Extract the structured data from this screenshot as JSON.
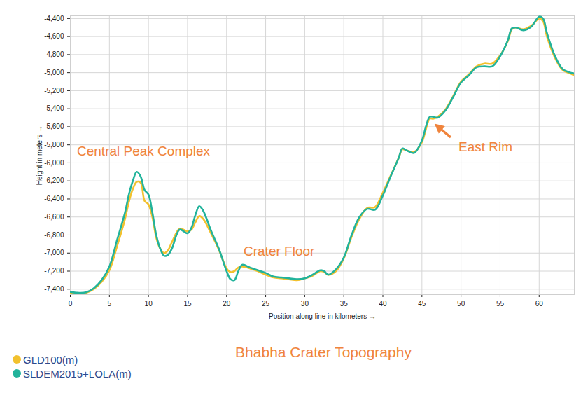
{
  "chart_data": {
    "type": "line",
    "title": "Bhabha Crater Topography",
    "x_label": "Position along line in kilometers",
    "y_label": "Height in meters",
    "grid": true,
    "legend": "bottom-left",
    "annotations": [
      "Central Peak Complex",
      "Crater Floor",
      "East Rim"
    ],
    "xlim": [
      0,
      64.5
    ],
    "xticks": [
      0,
      5,
      10,
      15,
      20,
      25,
      30,
      35,
      40,
      45,
      50,
      55,
      60
    ],
    "ylim": [
      -7460,
      -4370
    ],
    "yticks": [
      {
        "value": -4400,
        "label": "-4,400"
      },
      {
        "value": -4600,
        "label": "-4,600"
      },
      {
        "value": -4800,
        "label": "-4,800"
      },
      {
        "value": -5000,
        "label": "-5,000"
      },
      {
        "value": -5200,
        "label": "-5,200"
      },
      {
        "value": -5400,
        "label": "-5,400"
      },
      {
        "value": -5600,
        "label": "-5,600"
      },
      {
        "value": -5800,
        "label": "-5,800"
      },
      {
        "value": -6000,
        "label": "-6,000"
      },
      {
        "value": -6200,
        "label": "-6,200"
      },
      {
        "value": -6400,
        "label": "-6,400"
      },
      {
        "value": -6600,
        "label": "-6,600"
      },
      {
        "value": -6800,
        "label": "-6,800"
      },
      {
        "value": -7000,
        "label": "-7,000"
      },
      {
        "value": -7200,
        "label": "-7,200"
      },
      {
        "value": -7400,
        "label": "-7,400"
      }
    ],
    "x": [
      0,
      1,
      2,
      3,
      4,
      5,
      6,
      7,
      7.5,
      8,
      8.5,
      9,
      9.5,
      10,
      10.5,
      11,
      11.5,
      12,
      12.5,
      13,
      14,
      15,
      15.5,
      16,
      16.5,
      17,
      18,
      19,
      20,
      20.5,
      21,
      21.5,
      22,
      23,
      24,
      25,
      26,
      27,
      28,
      29,
      30,
      31,
      32,
      32.5,
      33,
      34,
      35,
      36,
      37,
      38,
      39,
      40,
      41,
      42,
      42.5,
      43,
      44,
      45,
      45.5,
      46,
      46.5,
      47,
      48,
      49,
      50,
      51,
      52,
      53,
      54,
      55,
      56,
      56.5,
      57,
      58,
      59,
      60,
      60.5,
      61,
      62,
      63,
      64,
      64.5
    ],
    "series": [
      {
        "name": "GLD100(m)",
        "color": "#f2c12e",
        "values": [
          -7440,
          -7450,
          -7440,
          -7400,
          -7320,
          -7190,
          -6920,
          -6620,
          -6430,
          -6290,
          -6210,
          -6220,
          -6420,
          -6460,
          -6600,
          -6830,
          -6950,
          -7000,
          -6970,
          -6880,
          -6730,
          -6760,
          -6740,
          -6660,
          -6590,
          -6620,
          -6780,
          -6960,
          -7170,
          -7210,
          -7200,
          -7160,
          -7150,
          -7170,
          -7200,
          -7240,
          -7270,
          -7280,
          -7290,
          -7300,
          -7280,
          -7250,
          -7200,
          -7210,
          -7240,
          -7200,
          -7060,
          -6820,
          -6620,
          -6500,
          -6490,
          -6330,
          -6140,
          -5950,
          -5850,
          -5860,
          -5880,
          -5770,
          -5630,
          -5510,
          -5510,
          -5490,
          -5410,
          -5260,
          -5100,
          -5020,
          -4930,
          -4900,
          -4900,
          -4810,
          -4650,
          -4520,
          -4500,
          -4520,
          -4480,
          -4400,
          -4430,
          -4600,
          -4830,
          -4970,
          -5010,
          -5030
        ]
      },
      {
        "name": "SLDEM2015+LOLA(m)",
        "color": "#22b39b",
        "values": [
          -7430,
          -7440,
          -7435,
          -7390,
          -7300,
          -7150,
          -6850,
          -6550,
          -6350,
          -6200,
          -6100,
          -6150,
          -6300,
          -6350,
          -6550,
          -6800,
          -6950,
          -7030,
          -7020,
          -6950,
          -6740,
          -6780,
          -6720,
          -6580,
          -6480,
          -6530,
          -6750,
          -6950,
          -7200,
          -7290,
          -7300,
          -7200,
          -7130,
          -7160,
          -7190,
          -7220,
          -7260,
          -7270,
          -7280,
          -7290,
          -7280,
          -7240,
          -7190,
          -7200,
          -7240,
          -7180,
          -7050,
          -6800,
          -6600,
          -6510,
          -6520,
          -6360,
          -6150,
          -5950,
          -5840,
          -5860,
          -5890,
          -5750,
          -5600,
          -5490,
          -5490,
          -5500,
          -5420,
          -5270,
          -5110,
          -5030,
          -4940,
          -4930,
          -4930,
          -4820,
          -4640,
          -4510,
          -4500,
          -4530,
          -4490,
          -4380,
          -4400,
          -4560,
          -4810,
          -4960,
          -5000,
          -5010
        ]
      }
    ]
  }
}
